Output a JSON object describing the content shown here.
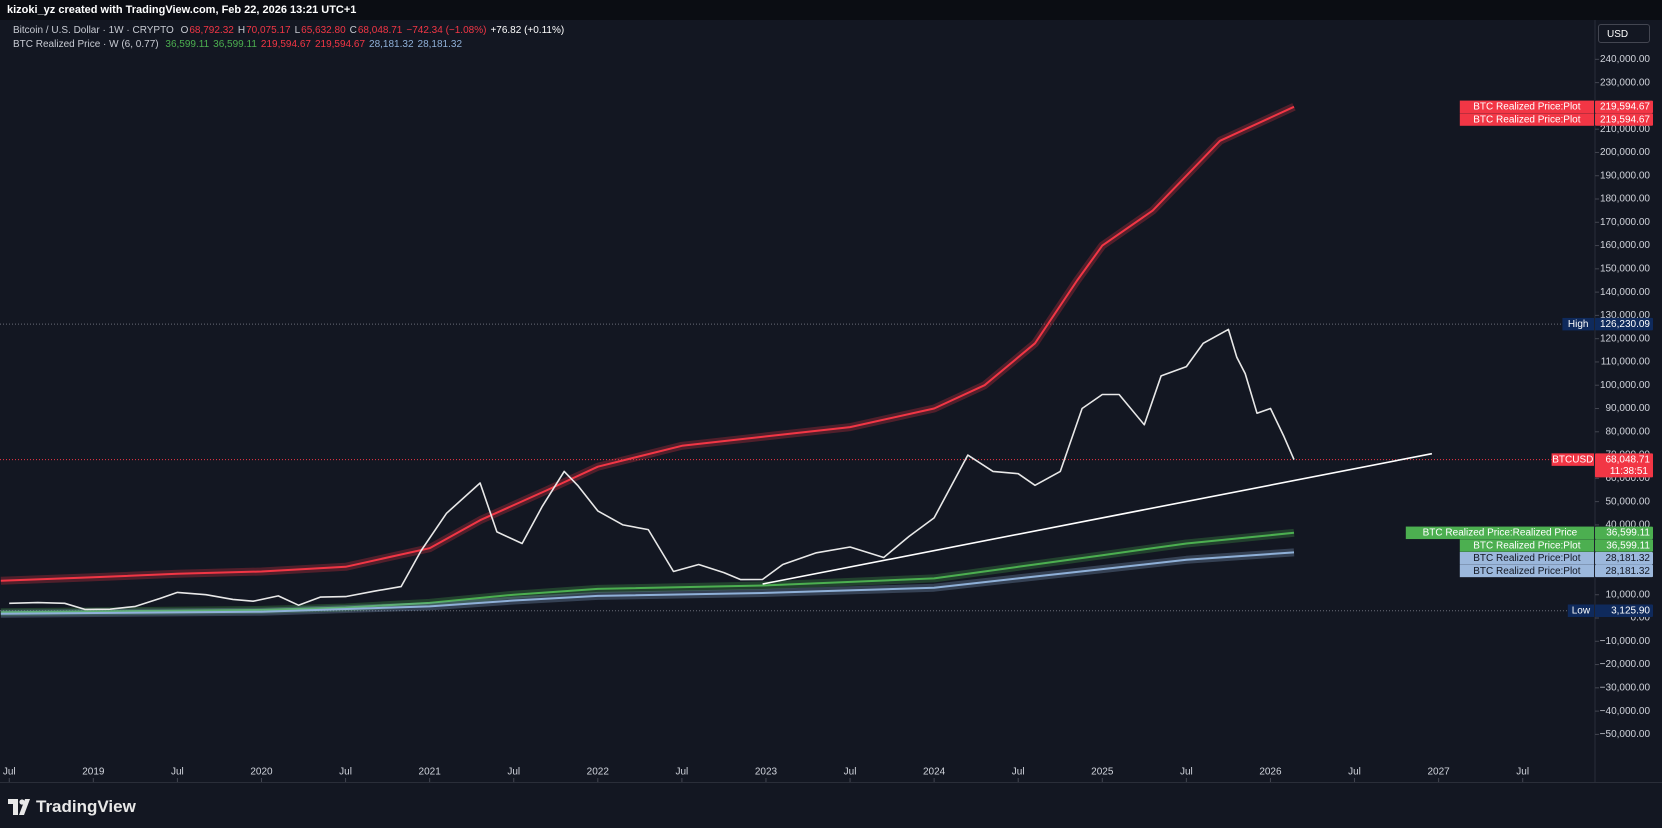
{
  "header": {
    "credit": "kizoki_yz created with TradingView.com, Feb 22, 2026 13:21 UTC+1",
    "currency": "USD",
    "brand": "TradingView"
  },
  "legend": {
    "symbol": "Bitcoin / U.S. Dollar · 1W · CRYPTO",
    "ohlc": [
      {
        "key": "O",
        "text": "68,792.32"
      },
      {
        "key": "H",
        "text": "70,075.17"
      },
      {
        "key": "L",
        "text": "65,632.80"
      },
      {
        "key": "C",
        "text": "68,048.71"
      }
    ],
    "change": "−742.34 (−1.08%)",
    "extra": "+76.82 (+0.11%)",
    "indicator": "BTC Realized Price · W (6, 0.77)",
    "indicator_values": [
      {
        "text": "36,599.11",
        "color": "#4caf50"
      },
      {
        "text": "36,599.11",
        "color": "#4caf50"
      },
      {
        "text": "219,594.67",
        "color": "#f23645"
      },
      {
        "text": "219,594.67",
        "color": "#f23645"
      },
      {
        "text": "28,181.32",
        "color": "#8fb0d8"
      },
      {
        "text": "28,181.32",
        "color": "#8fb0d8"
      }
    ]
  },
  "chart_data": {
    "type": "line",
    "xlim": [
      2018.445,
      2027.93
    ],
    "ylim": [
      -70450,
      256900
    ],
    "xticks": [
      {
        "value": 2018.5,
        "label": "Jul"
      },
      2019,
      {
        "value": 2019.5,
        "label": "Jul"
      },
      2020,
      {
        "value": 2020.5,
        "label": "Jul"
      },
      2021,
      {
        "value": 2021.5,
        "label": "Jul"
      },
      2022,
      {
        "value": 2022.5,
        "label": "Jul"
      },
      2023,
      {
        "value": 2023.5,
        "label": "Jul"
      },
      2024,
      {
        "value": 2024.5,
        "label": "Jul"
      },
      2025,
      {
        "value": 2025.5,
        "label": "Jul"
      },
      2026,
      {
        "value": 2026.5,
        "label": "Jul"
      },
      2027,
      {
        "value": 2027.5,
        "label": "Jul"
      }
    ],
    "yticks": [
      {
        "value": 240000,
        "label": "240,000.00"
      },
      {
        "value": 230000,
        "label": "230,000.00"
      },
      {
        "value": 220000,
        "label": "220,000.00"
      },
      {
        "value": 210000,
        "label": "210,000.00"
      },
      {
        "value": 200000,
        "label": "200,000.00"
      },
      {
        "value": 190000,
        "label": "190,000.00"
      },
      {
        "value": 180000,
        "label": "180,000.00"
      },
      {
        "value": 170000,
        "label": "170,000.00"
      },
      {
        "value": 160000,
        "label": "160,000.00"
      },
      {
        "value": 150000,
        "label": "150,000.00"
      },
      {
        "value": 140000,
        "label": "140,000.00"
      },
      {
        "value": 130000,
        "label": "130,000.00"
      },
      {
        "value": 120000,
        "label": "120,000.00"
      },
      {
        "value": 110000,
        "label": "110,000.00"
      },
      {
        "value": 100000,
        "label": "100,000.00"
      },
      {
        "value": 90000,
        "label": "90,000.00"
      },
      {
        "value": 80000,
        "label": "80,000.00"
      },
      {
        "value": 70000,
        "label": "70,000.00"
      },
      {
        "value": 60000,
        "label": "60,000.00"
      },
      {
        "value": 50000,
        "label": "50,000.00"
      },
      {
        "value": 40000,
        "label": "40,000.00"
      },
      {
        "value": 30000,
        "label": "30,000.00"
      },
      {
        "value": 20000,
        "label": "20,000.00"
      },
      {
        "value": 10000,
        "label": "10,000.00"
      },
      {
        "value": 0,
        "label": "0.00"
      },
      {
        "value": -10000,
        "label": "−10,000.00"
      },
      {
        "value": -20000,
        "label": "−20,000.00"
      },
      {
        "value": -30000,
        "label": "−30,000.00"
      },
      {
        "value": -40000,
        "label": "−40,000.00"
      },
      {
        "value": -50000,
        "label": "−50,000.00"
      }
    ],
    "series": [
      {
        "name": "BTCUSD",
        "color": "#e8e8e8",
        "x": [
          2018.5,
          2018.67,
          2018.83,
          2018.95,
          2019.1,
          2019.25,
          2019.4,
          2019.5,
          2019.67,
          2019.83,
          2019.95,
          2020.1,
          2020.22,
          2020.35,
          2020.5,
          2020.67,
          2020.83,
          2020.95,
          2021.1,
          2021.3,
          2021.4,
          2021.55,
          2021.67,
          2021.8,
          2021.88,
          2022.0,
          2022.15,
          2022.3,
          2022.45,
          2022.6,
          2022.75,
          2022.85,
          2022.98,
          2023.1,
          2023.3,
          2023.5,
          2023.7,
          2023.85,
          2024.0,
          2024.2,
          2024.35,
          2024.5,
          2024.6,
          2024.75,
          2024.88,
          2025.0,
          2025.1,
          2025.25,
          2025.35,
          2025.5,
          2025.6,
          2025.75,
          2025.8,
          2025.85,
          2025.92,
          2026.0,
          2026.08,
          2026.14
        ],
        "values": [
          6300,
          6600,
          6300,
          3700,
          3800,
          5000,
          8500,
          11000,
          10000,
          8000,
          7200,
          9500,
          5500,
          9000,
          9200,
          11500,
          13500,
          29000,
          45000,
          58000,
          37000,
          32000,
          48000,
          63000,
          57000,
          46000,
          40000,
          38000,
          20000,
          23000,
          19500,
          16500,
          16600,
          23000,
          28000,
          30500,
          26000,
          35000,
          43000,
          70000,
          63000,
          62000,
          57000,
          63000,
          90000,
          96000,
          96000,
          83000,
          104000,
          108000,
          118000,
          124000,
          112000,
          105000,
          88000,
          90000,
          78000,
          68048.71
        ]
      },
      {
        "name": "BTC Realized Price:Plot",
        "color": "#f23645",
        "x": [
          2018.45,
          2019,
          2019.5,
          2020,
          2020.5,
          2021,
          2021.3,
          2021.7,
          2022,
          2022.5,
          2023,
          2023.5,
          2024,
          2024.3,
          2024.6,
          2024.85,
          2025,
          2025.3,
          2025.5,
          2025.7,
          2026.14
        ],
        "values": [
          16000,
          17500,
          19000,
          20000,
          22000,
          30000,
          42000,
          55000,
          65000,
          74000,
          78000,
          82000,
          90000,
          100000,
          118000,
          145000,
          160000,
          175000,
          190000,
          205000,
          219594.67
        ]
      },
      {
        "name": "BTC Realized Price:Realized Price",
        "color": "#4caf50",
        "x": [
          2018.45,
          2020,
          2020.5,
          2021,
          2021.5,
          2022,
          2023,
          2024,
          2024.5,
          2025,
          2025.5,
          2026.14
        ],
        "values": [
          2500,
          3500,
          4500,
          6500,
          10000,
          12500,
          14000,
          17000,
          22000,
          27000,
          32000,
          36599.11
        ]
      },
      {
        "name": "BTC Realized Price:Plot",
        "color": "#8fb0d8",
        "x": [
          2018.45,
          2020,
          2021,
          2021.5,
          2022,
          2023,
          2024,
          2024.5,
          2025,
          2025.5,
          2026.14
        ],
        "values": [
          1800,
          2700,
          5000,
          7500,
          9500,
          10800,
          13000,
          17000,
          21000,
          25000,
          28181.32
        ]
      }
    ],
    "trendline": {
      "color": "#ffffff",
      "x": [
        2022.98,
        2026.96
      ],
      "values": [
        14600,
        70600
      ]
    },
    "price_labels": [
      {
        "name": "BTC Realized Price:Plot",
        "value": 219594.67,
        "label": "219,594.67",
        "color": "#f23645",
        "text_color": "#ffffff"
      },
      {
        "name": "BTC Realized Price:Plot",
        "value": 219594.67,
        "label": "219,594.67",
        "color": "#f23645",
        "text_color": "#ffffff"
      },
      {
        "name": "High",
        "value": 126230.09,
        "label": "126,230.09",
        "color": "#0f2a5c",
        "text_color": "#ffffff",
        "dotted": true
      },
      {
        "name": "BTCUSD",
        "value": 68048.71,
        "label": "68,048.71",
        "sub": "11:38:51",
        "color": "#f23645",
        "text_color": "#ffffff",
        "dotted": true
      },
      {
        "name": "BTC Realized Price:Realized Price",
        "value": 36599.11,
        "label": "36,599.11",
        "color": "#4caf50",
        "text_color": "#ffffff"
      },
      {
        "name": "BTC Realized Price:Plot",
        "value": 36599.11,
        "label": "36,599.11",
        "color": "#4caf50",
        "text_color": "#ffffff"
      },
      {
        "name": "BTC Realized Price:Plot",
        "value": 28181.32,
        "label": "28,181.32",
        "color": "#9cb8dc",
        "text_color": "#131722"
      },
      {
        "name": "BTC Realized Price:Plot",
        "value": 28181.32,
        "label": "28,181.32",
        "color": "#9cb8dc",
        "text_color": "#131722"
      },
      {
        "name": "Low",
        "value": 3125.9,
        "label": "3,125.90",
        "color": "#0f2a5c",
        "text_color": "#ffffff",
        "dotted": true
      }
    ]
  }
}
